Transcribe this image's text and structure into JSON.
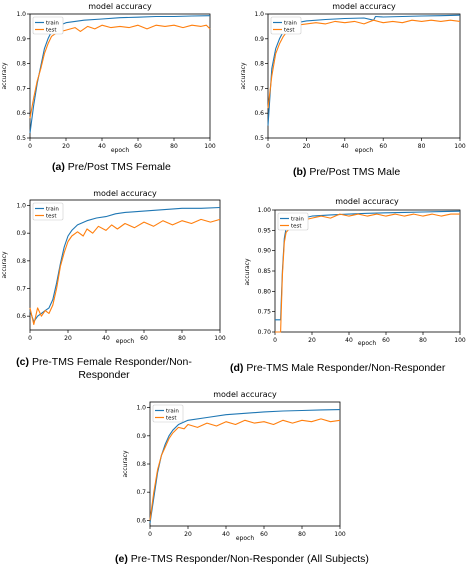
{
  "figure": {
    "captions": [
      {
        "tag": "(a)",
        "text": "Pre/Post TMS Female"
      },
      {
        "tag": "(b)",
        "text": "Pre/Post TMS Male"
      },
      {
        "tag": "(c)",
        "text": "Pre-TMS Female Responder/Non-Responder"
      },
      {
        "tag": "(d)",
        "text": "Pre-TMS Male Responder/Non-Responder"
      },
      {
        "tag": "(e)",
        "text": "Pre-TMS Responder/Non-Responder (All Subjects)"
      }
    ]
  },
  "colors": {
    "train": "#1f77b4",
    "test": "#ff7f0e"
  },
  "chart_data": [
    {
      "type": "line",
      "title": "model accuracy",
      "xlabel": "epoch",
      "ylabel": "accuracy",
      "xlim": [
        0,
        100
      ],
      "ylim": [
        0.5,
        1.0
      ],
      "xticks": [
        "0",
        "20",
        "40",
        "60",
        "80",
        "100"
      ],
      "yticks": [
        "0.5",
        "0.6",
        "0.7",
        "0.8",
        "0.9",
        "1.0"
      ],
      "legend": "upper-left",
      "series": [
        {
          "name": "train",
          "points": [
            [
              0,
              0.52
            ],
            [
              2,
              0.63
            ],
            [
              4,
              0.72
            ],
            [
              6,
              0.79
            ],
            [
              8,
              0.86
            ],
            [
              10,
              0.9
            ],
            [
              12,
              0.93
            ],
            [
              15,
              0.95
            ],
            [
              20,
              0.965
            ],
            [
              30,
              0.975
            ],
            [
              40,
              0.98
            ],
            [
              50,
              0.985
            ],
            [
              60,
              0.987
            ],
            [
              70,
              0.99
            ],
            [
              80,
              0.99
            ],
            [
              90,
              0.992
            ],
            [
              100,
              0.993
            ]
          ]
        },
        {
          "name": "test",
          "points": [
            [
              0,
              0.58
            ],
            [
              2,
              0.66
            ],
            [
              4,
              0.73
            ],
            [
              6,
              0.78
            ],
            [
              8,
              0.84
            ],
            [
              10,
              0.88
            ],
            [
              12,
              0.91
            ],
            [
              15,
              0.925
            ],
            [
              20,
              0.935
            ],
            [
              25,
              0.945
            ],
            [
              28,
              0.93
            ],
            [
              32,
              0.95
            ],
            [
              36,
              0.94
            ],
            [
              40,
              0.955
            ],
            [
              45,
              0.945
            ],
            [
              50,
              0.95
            ],
            [
              55,
              0.945
            ],
            [
              60,
              0.955
            ],
            [
              65,
              0.94
            ],
            [
              70,
              0.955
            ],
            [
              75,
              0.95
            ],
            [
              80,
              0.955
            ],
            [
              85,
              0.945
            ],
            [
              90,
              0.955
            ],
            [
              95,
              0.95
            ],
            [
              98,
              0.955
            ],
            [
              100,
              0.94
            ]
          ]
        }
      ]
    },
    {
      "type": "line",
      "title": "model accuracy",
      "xlabel": "epoch",
      "ylabel": "accuracy",
      "xlim": [
        0,
        100
      ],
      "ylim": [
        0.5,
        1.0
      ],
      "xticks": [
        "0",
        "20",
        "40",
        "60",
        "80",
        "100"
      ],
      "yticks": [
        "0.5",
        "0.6",
        "0.7",
        "0.8",
        "0.9",
        "1.0"
      ],
      "legend": "upper-left",
      "series": [
        {
          "name": "train",
          "points": [
            [
              0,
              0.55
            ],
            [
              2,
              0.78
            ],
            [
              4,
              0.86
            ],
            [
              6,
              0.9
            ],
            [
              8,
              0.93
            ],
            [
              10,
              0.95
            ],
            [
              15,
              0.965
            ],
            [
              20,
              0.972
            ],
            [
              30,
              0.978
            ],
            [
              40,
              0.982
            ],
            [
              50,
              0.984
            ],
            [
              55,
              0.975
            ],
            [
              56,
              0.99
            ],
            [
              60,
              0.988
            ],
            [
              70,
              0.99
            ],
            [
              80,
              0.992
            ],
            [
              90,
              0.993
            ],
            [
              100,
              0.995
            ]
          ]
        },
        {
          "name": "test",
          "points": [
            [
              0,
              0.62
            ],
            [
              2,
              0.75
            ],
            [
              4,
              0.84
            ],
            [
              6,
              0.88
            ],
            [
              8,
              0.91
            ],
            [
              10,
              0.93
            ],
            [
              12,
              0.94
            ],
            [
              15,
              0.955
            ],
            [
              20,
              0.96
            ],
            [
              25,
              0.965
            ],
            [
              30,
              0.96
            ],
            [
              35,
              0.97
            ],
            [
              40,
              0.965
            ],
            [
              45,
              0.97
            ],
            [
              50,
              0.96
            ],
            [
              55,
              0.975
            ],
            [
              60,
              0.965
            ],
            [
              65,
              0.97
            ],
            [
              70,
              0.965
            ],
            [
              75,
              0.975
            ],
            [
              80,
              0.97
            ],
            [
              85,
              0.975
            ],
            [
              90,
              0.97
            ],
            [
              95,
              0.975
            ],
            [
              100,
              0.97
            ]
          ]
        }
      ]
    },
    {
      "type": "line",
      "title": "model accuracy",
      "xlabel": "epoch",
      "ylabel": "accuracy",
      "xlim": [
        0,
        100
      ],
      "ylim": [
        0.55,
        1.02
      ],
      "xticks": [
        "0",
        "20",
        "40",
        "60",
        "80",
        "100"
      ],
      "yticks": [
        "0.6",
        "0.7",
        "0.8",
        "0.9",
        "1.0"
      ],
      "legend": "upper-left",
      "series": [
        {
          "name": "train",
          "points": [
            [
              0,
              0.62
            ],
            [
              2,
              0.58
            ],
            [
              4,
              0.6
            ],
            [
              6,
              0.61
            ],
            [
              8,
              0.62
            ],
            [
              10,
              0.63
            ],
            [
              12,
              0.66
            ],
            [
              14,
              0.72
            ],
            [
              16,
              0.79
            ],
            [
              18,
              0.85
            ],
            [
              20,
              0.89
            ],
            [
              22,
              0.91
            ],
            [
              25,
              0.93
            ],
            [
              30,
              0.945
            ],
            [
              35,
              0.955
            ],
            [
              40,
              0.96
            ],
            [
              45,
              0.97
            ],
            [
              50,
              0.975
            ],
            [
              60,
              0.98
            ],
            [
              70,
              0.985
            ],
            [
              80,
              0.99
            ],
            [
              90,
              0.99
            ],
            [
              100,
              0.993
            ]
          ]
        },
        {
          "name": "test",
          "points": [
            [
              0,
              0.63
            ],
            [
              2,
              0.57
            ],
            [
              4,
              0.63
            ],
            [
              6,
              0.6
            ],
            [
              8,
              0.62
            ],
            [
              10,
              0.61
            ],
            [
              12,
              0.64
            ],
            [
              14,
              0.7
            ],
            [
              16,
              0.78
            ],
            [
              18,
              0.83
            ],
            [
              20,
              0.87
            ],
            [
              22,
              0.89
            ],
            [
              25,
              0.905
            ],
            [
              28,
              0.89
            ],
            [
              30,
              0.915
            ],
            [
              33,
              0.9
            ],
            [
              36,
              0.925
            ],
            [
              40,
              0.91
            ],
            [
              43,
              0.93
            ],
            [
              46,
              0.915
            ],
            [
              50,
              0.935
            ],
            [
              55,
              0.92
            ],
            [
              60,
              0.94
            ],
            [
              65,
              0.925
            ],
            [
              70,
              0.945
            ],
            [
              75,
              0.93
            ],
            [
              80,
              0.945
            ],
            [
              85,
              0.935
            ],
            [
              90,
              0.95
            ],
            [
              95,
              0.94
            ],
            [
              100,
              0.95
            ]
          ]
        }
      ]
    },
    {
      "type": "line",
      "title": "model accuracy",
      "xlabel": "epoch",
      "ylabel": "accuracy",
      "xlim": [
        0,
        100
      ],
      "ylim": [
        0.7,
        1.0
      ],
      "xticks": [
        "0",
        "20",
        "40",
        "60",
        "80",
        "100"
      ],
      "yticks": [
        "0.70",
        "0.75",
        "0.80",
        "0.85",
        "0.90",
        "0.95",
        "1.00"
      ],
      "legend": "upper-left",
      "series": [
        {
          "name": "train",
          "points": [
            [
              0,
              0.73
            ],
            [
              3,
              0.73
            ],
            [
              4,
              0.85
            ],
            [
              5,
              0.93
            ],
            [
              6,
              0.955
            ],
            [
              8,
              0.96
            ],
            [
              10,
              0.97
            ],
            [
              15,
              0.98
            ],
            [
              20,
              0.985
            ],
            [
              30,
              0.988
            ],
            [
              40,
              0.99
            ],
            [
              50,
              0.992
            ],
            [
              60,
              0.993
            ],
            [
              70,
              0.994
            ],
            [
              80,
              0.995
            ],
            [
              90,
              0.996
            ],
            [
              100,
              0.997
            ]
          ]
        },
        {
          "name": "test",
          "points": [
            [
              0,
              0.7
            ],
            [
              3,
              0.7
            ],
            [
              4,
              0.84
            ],
            [
              5,
              0.92
            ],
            [
              6,
              0.945
            ],
            [
              8,
              0.955
            ],
            [
              10,
              0.96
            ],
            [
              15,
              0.975
            ],
            [
              20,
              0.98
            ],
            [
              25,
              0.985
            ],
            [
              30,
              0.98
            ],
            [
              35,
              0.99
            ],
            [
              40,
              0.985
            ],
            [
              45,
              0.99
            ],
            [
              50,
              0.985
            ],
            [
              55,
              0.99
            ],
            [
              60,
              0.985
            ],
            [
              65,
              0.99
            ],
            [
              70,
              0.985
            ],
            [
              75,
              0.99
            ],
            [
              80,
              0.985
            ],
            [
              85,
              0.99
            ],
            [
              90,
              0.985
            ],
            [
              95,
              0.99
            ],
            [
              100,
              0.99
            ]
          ]
        }
      ]
    },
    {
      "type": "line",
      "title": "model accuracy",
      "xlabel": "epoch",
      "ylabel": "accuracy",
      "xlim": [
        0,
        100
      ],
      "ylim": [
        0.58,
        1.02
      ],
      "xticks": [
        "0",
        "20",
        "40",
        "60",
        "80",
        "100"
      ],
      "yticks": [
        "0.6",
        "0.7",
        "0.8",
        "0.9",
        "1.0"
      ],
      "legend": "upper-left",
      "series": [
        {
          "name": "train",
          "points": [
            [
              0,
              0.59
            ],
            [
              2,
              0.68
            ],
            [
              4,
              0.77
            ],
            [
              6,
              0.83
            ],
            [
              8,
              0.87
            ],
            [
              10,
              0.9
            ],
            [
              12,
              0.92
            ],
            [
              15,
              0.94
            ],
            [
              20,
              0.955
            ],
            [
              30,
              0.965
            ],
            [
              40,
              0.975
            ],
            [
              50,
              0.98
            ],
            [
              60,
              0.985
            ],
            [
              70,
              0.988
            ],
            [
              80,
              0.99
            ],
            [
              90,
              0.992
            ],
            [
              100,
              0.993
            ]
          ]
        },
        {
          "name": "test",
          "points": [
            [
              0,
              0.6
            ],
            [
              2,
              0.7
            ],
            [
              4,
              0.78
            ],
            [
              6,
              0.83
            ],
            [
              8,
              0.86
            ],
            [
              10,
              0.89
            ],
            [
              12,
              0.91
            ],
            [
              15,
              0.93
            ],
            [
              18,
              0.925
            ],
            [
              20,
              0.94
            ],
            [
              25,
              0.93
            ],
            [
              30,
              0.945
            ],
            [
              35,
              0.935
            ],
            [
              40,
              0.95
            ],
            [
              45,
              0.94
            ],
            [
              50,
              0.955
            ],
            [
              55,
              0.945
            ],
            [
              60,
              0.95
            ],
            [
              65,
              0.94
            ],
            [
              70,
              0.955
            ],
            [
              75,
              0.945
            ],
            [
              80,
              0.955
            ],
            [
              85,
              0.95
            ],
            [
              90,
              0.96
            ],
            [
              95,
              0.95
            ],
            [
              100,
              0.955
            ]
          ]
        }
      ]
    }
  ]
}
